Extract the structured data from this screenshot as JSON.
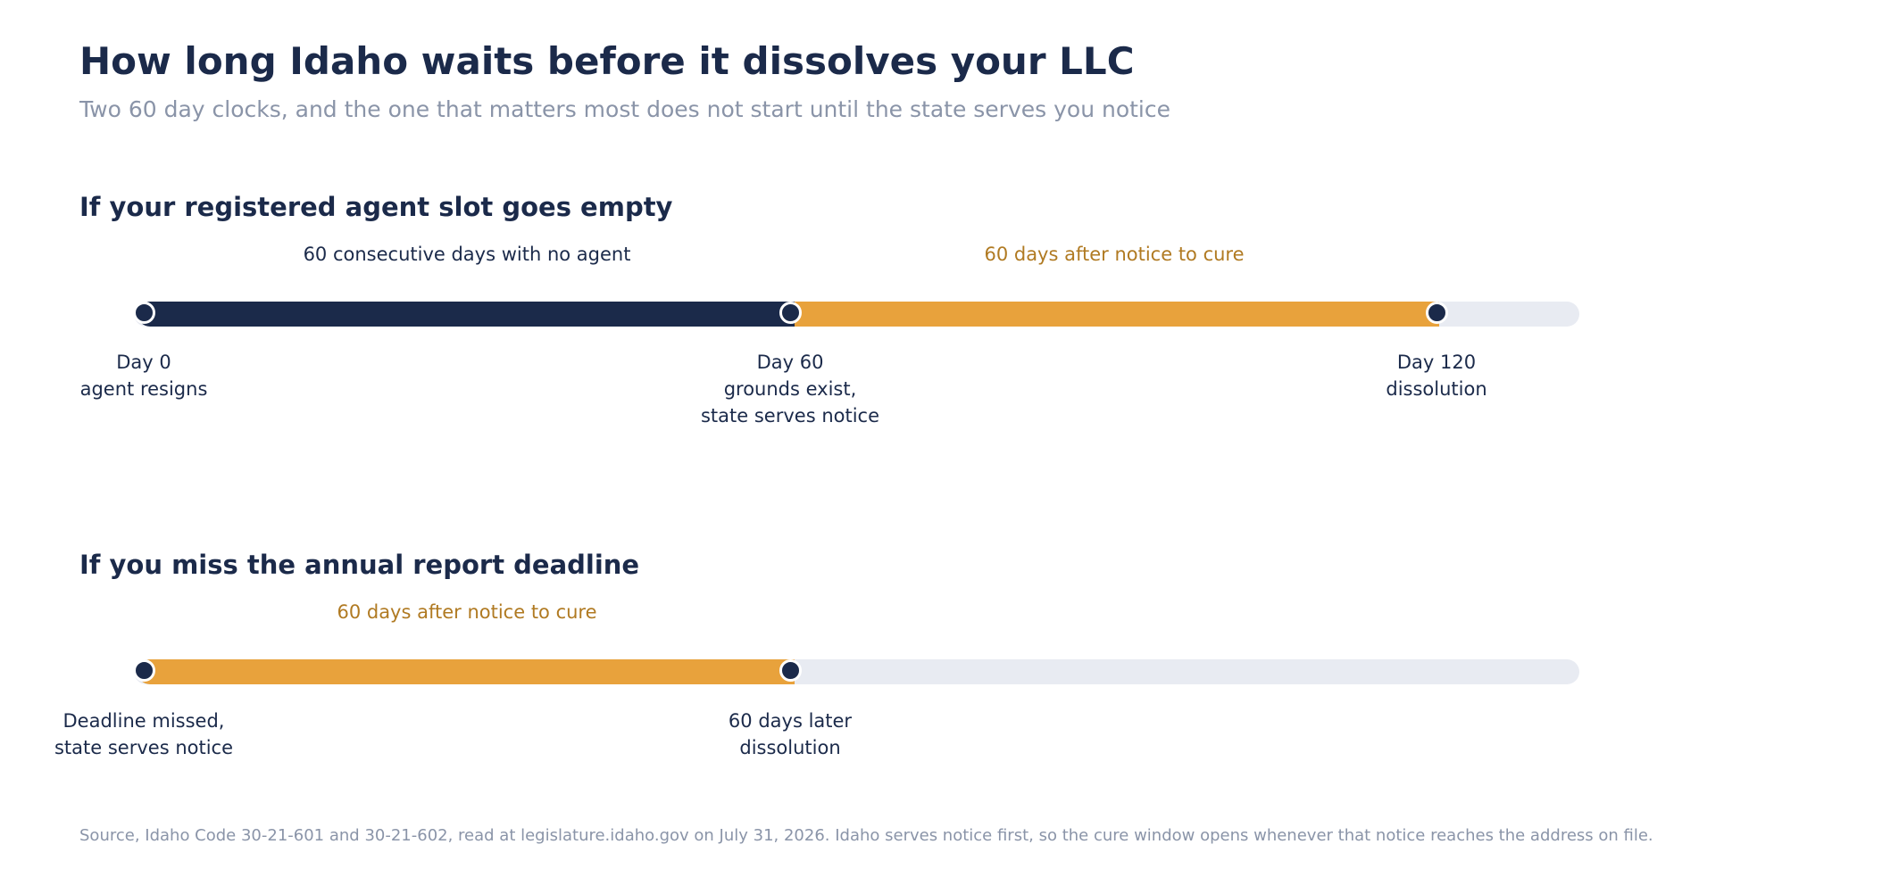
{
  "title": "How long Idaho waits before it dissolves your LLC",
  "subtitle": "Two 60 day clocks, and the one that matters most does not start until the state serves you notice",
  "timelines": [
    {
      "heading": "If your registered agent slot goes empty",
      "segments": [
        {
          "label": "60 consecutive days with no agent",
          "color": "#1b2a4a"
        },
        {
          "label": "60 days after notice to cure",
          "color": "#e8a23c"
        }
      ],
      "milestones": [
        {
          "line1": "Day 0",
          "line2": "agent resigns",
          "line3": ""
        },
        {
          "line1": "Day 60",
          "line2": "grounds exist,",
          "line3": "state serves notice"
        },
        {
          "line1": "Day 120",
          "line2": "dissolution",
          "line3": ""
        }
      ]
    },
    {
      "heading": "If you miss the annual report deadline",
      "segments": [
        {
          "label": "60 days after notice to cure",
          "color": "#e8a23c"
        }
      ],
      "milestones": [
        {
          "line1": "Deadline missed,",
          "line2": "state serves notice",
          "line3": ""
        },
        {
          "line1": "60 days later",
          "line2": "dissolution",
          "line3": ""
        }
      ]
    }
  ],
  "source": "Source, Idaho Code 30-21-601 and 30-21-602, read at legislature.idaho.gov on July 31, 2026. Idaho serves notice first, so the cure window opens whenever that notice reaches the address on file.",
  "colors": {
    "navy": "#1b2a4a",
    "orange": "#e8a23c",
    "orange_text": "#b07a22",
    "track": "#e8ebf2",
    "muted": "#8a94a8"
  }
}
